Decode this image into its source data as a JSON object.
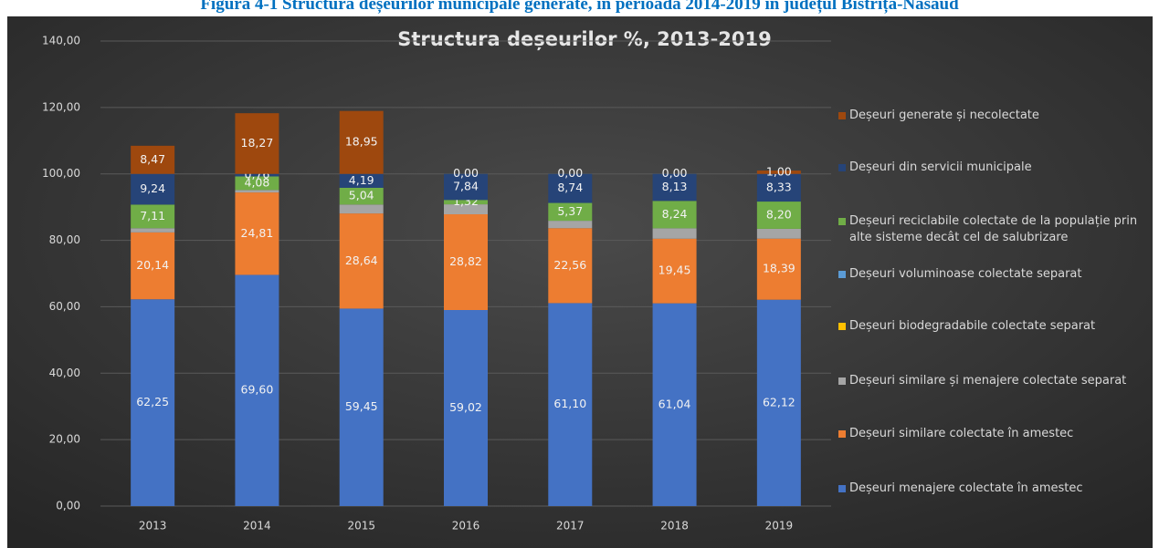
{
  "chart_data": {
    "type": "stacked_bar",
    "caption": "Figura 4-1 Structura deșeurilor municipale generate, în perioada 2014-2019 în județul Bistrița-Năsăud",
    "title": "Structura deșeurilor %, 2013-2019",
    "categories": [
      "2013",
      "2014",
      "2015",
      "2016",
      "2017",
      "2018",
      "2019"
    ],
    "ylim": [
      0,
      140
    ],
    "yticks": [
      {
        "value": 0,
        "label": "0,00"
      },
      {
        "value": 20,
        "label": "20,00"
      },
      {
        "value": 40,
        "label": "40,00"
      },
      {
        "value": 60,
        "label": "60,00"
      },
      {
        "value": 80,
        "label": "80,00"
      },
      {
        "value": 100,
        "label": "100,00"
      },
      {
        "value": 120,
        "label": "120,00"
      },
      {
        "value": 140,
        "label": "140,00"
      }
    ],
    "grid": true,
    "legend": "right",
    "series": [
      {
        "name": "Deșeuri menajere colectate în amestec",
        "color": "#4472c4",
        "values": [
          62.25,
          69.6,
          59.45,
          59.02,
          61.1,
          61.04,
          62.12
        ],
        "value_labels": [
          "62,25",
          "69,60",
          "59,45",
          "59,02",
          "61,10",
          "61,04",
          "62,12"
        ]
      },
      {
        "name": "Deșeuri similare colectate în amestec",
        "color": "#ed7d31",
        "values": [
          20.14,
          24.81,
          28.64,
          28.82,
          22.56,
          19.45,
          18.39
        ],
        "value_labels": [
          "20,14",
          "24,81",
          "28,64",
          "28,82",
          "22,56",
          "19,45",
          "18,39"
        ]
      },
      {
        "name": "Deșeuri similare și menajere colectate separat",
        "color": "#a5a5a5",
        "values": [
          1.26,
          0.75,
          2.68,
          3.0,
          2.23,
          3.14,
          2.96
        ]
      },
      {
        "name": "Deșeuri biodegradabile colectate separat",
        "color": "#ffc000",
        "values": [
          0,
          0,
          0,
          0,
          0,
          0,
          0
        ]
      },
      {
        "name": "Deșeuri voluminoase colectate separat",
        "color": "#5b9bd5",
        "values": [
          0,
          0,
          0,
          0,
          0,
          0,
          0
        ]
      },
      {
        "name": "Deșeuri reciclabile colectate de la populație prin alte sisteme decât cel de salubrizare",
        "color": "#70ad47",
        "values": [
          7.11,
          4.08,
          5.04,
          1.32,
          5.37,
          8.24,
          8.2
        ],
        "value_labels": [
          "7,11",
          "4,08",
          "5,04",
          "1,32",
          "5,37",
          "8,24",
          "8,20"
        ]
      },
      {
        "name": "Deșeuri din servicii municipale",
        "color": "#264478",
        "values": [
          9.24,
          0.76,
          4.19,
          7.84,
          8.74,
          8.13,
          8.33
        ],
        "value_labels": [
          "9,24",
          "0,76",
          "4,19",
          "7,84",
          "8,74",
          "8,13",
          "8,33"
        ]
      },
      {
        "name": "Deșeuri generate și necolectate",
        "color": "#9e480e",
        "values": [
          8.47,
          18.27,
          18.95,
          0,
          0,
          0,
          1.0
        ],
        "value_labels": [
          "8,47",
          "18,27",
          "18,95",
          "0,00",
          "0,00",
          "0,00",
          "1,00"
        ]
      }
    ]
  }
}
